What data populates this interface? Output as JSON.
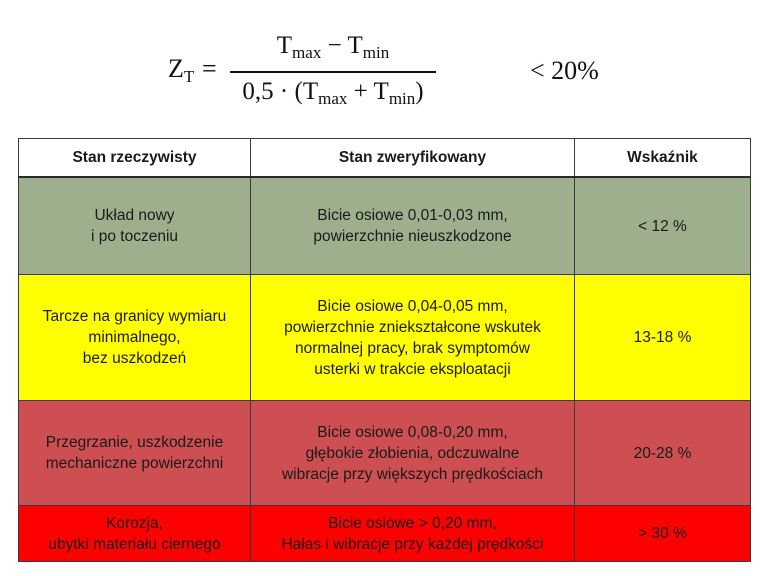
{
  "formula": {
    "lhs_symbol": "Z",
    "lhs_subscript": "T",
    "equals": "=",
    "numerator": {
      "t1": "T",
      "t1_sub": "max",
      "op": " − ",
      "t2": "T",
      "t2_sub": "min"
    },
    "denominator": {
      "prefix": "0,5 · (",
      "t1": "T",
      "t1_sub": "max",
      "op": " + ",
      "t2": "T",
      "t2_sub": "min",
      "suffix": ")"
    },
    "threshold": "< 20%"
  },
  "table": {
    "headers": [
      "Stan rzeczywisty",
      "Stan zweryfikowany",
      "Wskaźnik"
    ],
    "rows": [
      {
        "actual": "Układ nowy\ni po toczeniu",
        "verified": "Bicie osiowe 0,01-0,03 mm,\npowierzchnie nieuszkodzone",
        "indicator": "< 12 %",
        "color": "#9eaf8d"
      },
      {
        "actual": "Tarcze na granicy wymiaru\nminimalnego,\nbez  uszkodzeń",
        "verified": "Bicie osiowe 0,04-0,05 mm,\npowierzchnie zniekształcone wskutek\nnormalnej pracy, brak  symptomów\nusterki  w trakcie eksploatacji",
        "indicator": "13-18 %",
        "color": "#ffff00"
      },
      {
        "actual": "Przegrzanie, uszkodzenie\nmechaniczne powierzchni",
        "verified": "Bicie osiowe 0,08-0,20 mm,\ngłębokie złobienia, odczuwalne\nwibracje przy większych prędkościach",
        "indicator": "20-28 %",
        "color": "#cd4f51"
      },
      {
        "actual": "Korozja,\nubytki materiału ciernego",
        "verified": "Bicie osiowe > 0,20 mm,\nHałas i wibracje przy każdej prędkości",
        "indicator": "> 30 %",
        "color": "#ff0000"
      }
    ]
  }
}
